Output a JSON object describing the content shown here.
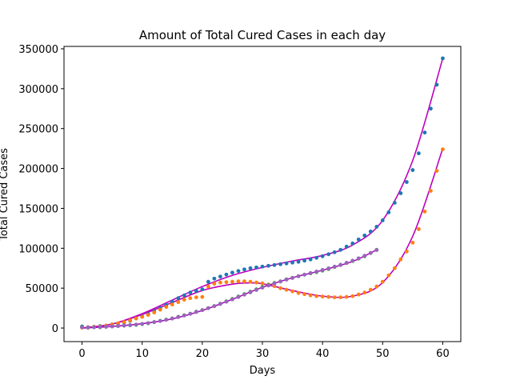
{
  "chart_data": {
    "type": "scatter",
    "title": "Amount of Total Cured Cases in each day",
    "xlabel": "Days",
    "ylabel": "Total Cured Cases",
    "xlim": [
      -3,
      63
    ],
    "ylim": [
      -17000,
      353000
    ],
    "xticks": [
      0,
      10,
      20,
      30,
      40,
      50,
      60
    ],
    "yticks": [
      0,
      50000,
      100000,
      150000,
      200000,
      250000,
      300000,
      350000
    ],
    "grid": false,
    "legend": "none",
    "fit_color": "#bf00bf",
    "series": [
      {
        "color": "#1f77b4",
        "points": [
          [
            0,
            2000
          ],
          [
            1,
            1000
          ],
          [
            2,
            1500
          ],
          [
            3,
            2500
          ],
          [
            4,
            3000
          ],
          [
            5,
            4500
          ],
          [
            6,
            5500
          ],
          [
            7,
            7000
          ],
          [
            8,
            9000
          ],
          [
            9,
            12000
          ],
          [
            10,
            14500
          ],
          [
            11,
            17500
          ],
          [
            12,
            21000
          ],
          [
            13,
            25000
          ],
          [
            14,
            29000
          ],
          [
            15,
            33000
          ],
          [
            16,
            37500
          ],
          [
            17,
            41000
          ],
          [
            18,
            44500
          ],
          [
            19,
            46500
          ],
          [
            20,
            48500
          ],
          [
            21,
            58000
          ],
          [
            22,
            62000
          ],
          [
            23,
            64500
          ],
          [
            24,
            67000
          ],
          [
            25,
            69500
          ],
          [
            26,
            71500
          ],
          [
            27,
            73500
          ],
          [
            28,
            75000
          ],
          [
            29,
            76000
          ],
          [
            30,
            77000
          ],
          [
            31,
            78000
          ],
          [
            32,
            79000
          ],
          [
            33,
            80000
          ],
          [
            34,
            81000
          ],
          [
            35,
            82000
          ],
          [
            36,
            83000
          ],
          [
            37,
            84500
          ],
          [
            38,
            86000
          ],
          [
            39,
            88000
          ],
          [
            40,
            90000
          ],
          [
            41,
            92500
          ],
          [
            42,
            95000
          ],
          [
            43,
            98000
          ],
          [
            44,
            102000
          ],
          [
            45,
            106000
          ],
          [
            46,
            111000
          ],
          [
            47,
            116000
          ],
          [
            48,
            121000
          ],
          [
            49,
            127000
          ],
          [
            50,
            135000
          ],
          [
            51,
            145000
          ],
          [
            52,
            157000
          ],
          [
            53,
            169000
          ],
          [
            54,
            183000
          ],
          [
            55,
            198000
          ],
          [
            56,
            219000
          ],
          [
            57,
            245000
          ],
          [
            58,
            275000
          ],
          [
            59,
            305000
          ],
          [
            60,
            338000
          ]
        ]
      },
      {
        "color": "#ff7f0e",
        "points": [
          [
            0,
            500
          ],
          [
            1,
            1000
          ],
          [
            2,
            1500
          ],
          [
            3,
            2000
          ],
          [
            4,
            3000
          ],
          [
            5,
            4500
          ],
          [
            6,
            6000
          ],
          [
            7,
            7500
          ],
          [
            8,
            9500
          ],
          [
            9,
            12000
          ],
          [
            10,
            14000
          ],
          [
            11,
            16500
          ],
          [
            12,
            19500
          ],
          [
            13,
            23000
          ],
          [
            14,
            26500
          ],
          [
            15,
            29500
          ],
          [
            16,
            32500
          ],
          [
            17,
            35500
          ],
          [
            18,
            37500
          ],
          [
            19,
            38500
          ],
          [
            20,
            39000
          ],
          [
            21,
            52000
          ],
          [
            22,
            55500
          ],
          [
            23,
            57000
          ],
          [
            24,
            57500
          ],
          [
            25,
            58000
          ],
          [
            26,
            58500
          ],
          [
            27,
            58500
          ],
          [
            28,
            58000
          ],
          [
            29,
            57000
          ],
          [
            30,
            56000
          ],
          [
            31,
            54500
          ],
          [
            32,
            52500
          ],
          [
            33,
            50000
          ],
          [
            34,
            48000
          ],
          [
            35,
            46000
          ],
          [
            36,
            44000
          ],
          [
            37,
            42500
          ],
          [
            38,
            41000
          ],
          [
            39,
            40000
          ],
          [
            40,
            39500
          ],
          [
            41,
            39000
          ],
          [
            42,
            38500
          ],
          [
            43,
            38500
          ],
          [
            44,
            39000
          ],
          [
            45,
            40000
          ],
          [
            46,
            42000
          ],
          [
            47,
            44500
          ],
          [
            48,
            48000
          ],
          [
            49,
            52000
          ],
          [
            50,
            58000
          ],
          [
            51,
            66000
          ],
          [
            52,
            75000
          ],
          [
            53,
            86000
          ],
          [
            54,
            96000
          ],
          [
            55,
            107000
          ],
          [
            56,
            124000
          ],
          [
            57,
            146000
          ],
          [
            58,
            172000
          ],
          [
            59,
            197000
          ],
          [
            60,
            224000
          ]
        ]
      },
      {
        "color": "#2ca02c",
        "points": [
          [
            0,
            1500
          ],
          [
            1,
            500
          ],
          [
            2,
            1000
          ],
          [
            3,
            1000
          ],
          [
            4,
            1500
          ],
          [
            5,
            2000
          ],
          [
            6,
            2500
          ],
          [
            7,
            3000
          ],
          [
            8,
            3500
          ],
          [
            9,
            4000
          ],
          [
            10,
            5000
          ],
          [
            11,
            6000
          ],
          [
            12,
            7500
          ],
          [
            13,
            9000
          ],
          [
            14,
            10500
          ],
          [
            15,
            12000
          ],
          [
            16,
            14000
          ],
          [
            17,
            16000
          ],
          [
            18,
            18000
          ],
          [
            19,
            20500
          ],
          [
            20,
            22500
          ],
          [
            21,
            25000
          ],
          [
            22,
            27500
          ],
          [
            23,
            30500
          ],
          [
            24,
            33500
          ],
          [
            25,
            36500
          ],
          [
            26,
            39500
          ],
          [
            27,
            42500
          ],
          [
            28,
            45500
          ],
          [
            29,
            48500
          ],
          [
            30,
            51500
          ],
          [
            31,
            54000
          ],
          [
            32,
            56500
          ],
          [
            33,
            58500
          ],
          [
            34,
            61000
          ],
          [
            35,
            63000
          ],
          [
            36,
            65000
          ],
          [
            37,
            67000
          ],
          [
            38,
            68500
          ],
          [
            39,
            70000
          ],
          [
            40,
            72000
          ],
          [
            41,
            74000
          ],
          [
            42,
            76500
          ],
          [
            43,
            79000
          ],
          [
            44,
            81500
          ],
          [
            45,
            84000
          ],
          [
            46,
            87000
          ],
          [
            47,
            90000
          ],
          [
            48,
            94000
          ],
          [
            49,
            98000
          ]
        ]
      },
      {
        "color": "#9467bd",
        "points": [
          [
            0,
            1000
          ],
          [
            1,
            700
          ],
          [
            2,
            900
          ],
          [
            3,
            1200
          ],
          [
            4,
            1600
          ],
          [
            5,
            2100
          ],
          [
            6,
            2600
          ],
          [
            7,
            3100
          ],
          [
            8,
            3700
          ],
          [
            9,
            4400
          ],
          [
            10,
            5200
          ],
          [
            11,
            6200
          ],
          [
            12,
            7400
          ],
          [
            13,
            8800
          ],
          [
            14,
            10300
          ],
          [
            15,
            11900
          ],
          [
            16,
            13700
          ],
          [
            17,
            15700
          ],
          [
            18,
            17800
          ],
          [
            19,
            20100
          ],
          [
            20,
            22400
          ],
          [
            21,
            24900
          ],
          [
            22,
            27500
          ],
          [
            23,
            30200
          ],
          [
            24,
            33000
          ],
          [
            25,
            35900
          ],
          [
            26,
            38800
          ],
          [
            27,
            41800
          ],
          [
            28,
            44800
          ],
          [
            29,
            47700
          ],
          [
            30,
            50600
          ],
          [
            31,
            53300
          ],
          [
            32,
            55900
          ],
          [
            33,
            58300
          ],
          [
            34,
            60600
          ],
          [
            35,
            62800
          ],
          [
            36,
            64900
          ],
          [
            37,
            66900
          ],
          [
            38,
            68900
          ],
          [
            39,
            70800
          ],
          [
            40,
            72800
          ],
          [
            41,
            74800
          ],
          [
            42,
            77000
          ],
          [
            43,
            79300
          ],
          [
            44,
            81800
          ],
          [
            45,
            84500
          ],
          [
            46,
            87400
          ],
          [
            47,
            90600
          ],
          [
            48,
            94100
          ],
          [
            49,
            97800
          ]
        ]
      }
    ],
    "fits": [
      {
        "x": [
          0,
          5,
          10,
          15,
          20,
          25,
          30,
          35,
          40,
          45,
          50,
          55,
          60
        ],
        "y": [
          0,
          5000,
          18000,
          35000,
          52000,
          66000,
          76000,
          84000,
          91000,
          104000,
          135000,
          210000,
          338000
        ]
      },
      {
        "x": [
          0,
          5,
          10,
          15,
          20,
          25,
          28,
          30,
          35,
          40,
          45,
          50,
          55,
          60
        ],
        "y": [
          0,
          5000,
          17000,
          32000,
          47000,
          55000,
          56500,
          55500,
          47000,
          40000,
          40000,
          57000,
          115000,
          225000
        ]
      },
      {
        "x": [
          0,
          5,
          10,
          15,
          20,
          25,
          30,
          35,
          40,
          45,
          49
        ],
        "y": [
          0,
          2000,
          5500,
          11500,
          22000,
          36000,
          51000,
          63000,
          72500,
          83500,
          98000
        ]
      }
    ]
  }
}
